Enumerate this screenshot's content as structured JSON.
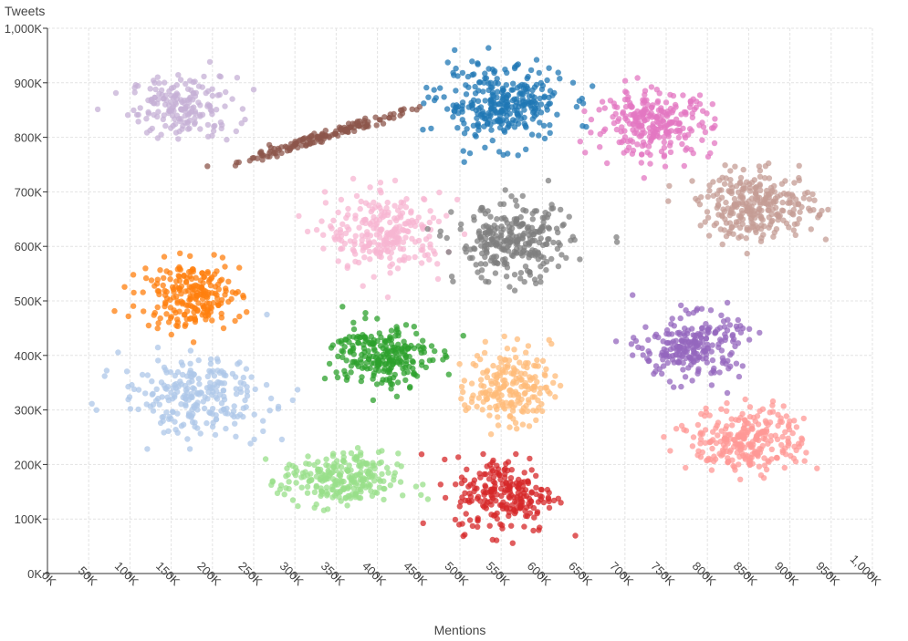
{
  "chart_data": {
    "type": "scatter",
    "title": "",
    "xlabel": "Mentions",
    "ylabel": "Tweets",
    "xlim": [
      0,
      1000000
    ],
    "ylim": [
      0,
      1000000
    ],
    "grid": true,
    "legend": "none",
    "x_ticks": [
      "0K",
      "50K",
      "100K",
      "150K",
      "200K",
      "250K",
      "300K",
      "350K",
      "400K",
      "450K",
      "500K",
      "550K",
      "600K",
      "650K",
      "700K",
      "750K",
      "800K",
      "850K",
      "900K",
      "950K",
      "1,000K"
    ],
    "y_ticks": [
      "0K",
      "100K",
      "200K",
      "300K",
      "400K",
      "500K",
      "600K",
      "700K",
      "800K",
      "900K",
      "1,000K"
    ],
    "clusters": [
      {
        "color": "#c5b0d5",
        "center": [
          165000,
          855000
        ],
        "spread": [
          32000,
          28000
        ],
        "count": 180
      },
      {
        "color": "#8c564b",
        "center": [
          330000,
          800000
        ],
        "spread": [
          50000,
          20000
        ],
        "count": 150,
        "trend": "diagonal"
      },
      {
        "color": "#1f77b4",
        "center": [
          550000,
          860000
        ],
        "spread": [
          38000,
          35000
        ],
        "count": 300
      },
      {
        "color": "#e377c2",
        "center": [
          735000,
          825000
        ],
        "spread": [
          35000,
          30000
        ],
        "count": 260
      },
      {
        "color": "#f7b6d2",
        "center": [
          410000,
          625000
        ],
        "spread": [
          35000,
          35000
        ],
        "count": 250
      },
      {
        "color": "#7f7f7f",
        "center": [
          565000,
          605000
        ],
        "spread": [
          35000,
          35000
        ],
        "count": 280
      },
      {
        "color": "#c49c94",
        "center": [
          860000,
          675000
        ],
        "spread": [
          35000,
          30000
        ],
        "count": 280
      },
      {
        "color": "#ff7f0e",
        "center": [
          175000,
          510000
        ],
        "spread": [
          30000,
          30000
        ],
        "count": 220
      },
      {
        "color": "#2ca02c",
        "center": [
          405000,
          400000
        ],
        "spread": [
          30000,
          30000
        ],
        "count": 240
      },
      {
        "color": "#9467bd",
        "center": [
          780000,
          415000
        ],
        "spread": [
          30000,
          30000
        ],
        "count": 240
      },
      {
        "color": "#aec7e8",
        "center": [
          180000,
          325000
        ],
        "spread": [
          45000,
          35000
        ],
        "count": 240
      },
      {
        "color": "#ffbb78",
        "center": [
          560000,
          345000
        ],
        "spread": [
          25000,
          35000
        ],
        "count": 200
      },
      {
        "color": "#ff9896",
        "center": [
          850000,
          245000
        ],
        "spread": [
          35000,
          30000
        ],
        "count": 260
      },
      {
        "color": "#98df8a",
        "center": [
          355000,
          170000
        ],
        "spread": [
          35000,
          25000
        ],
        "count": 250
      },
      {
        "color": "#d62728",
        "center": [
          555000,
          145000
        ],
        "spread": [
          30000,
          35000
        ],
        "count": 230
      }
    ]
  }
}
